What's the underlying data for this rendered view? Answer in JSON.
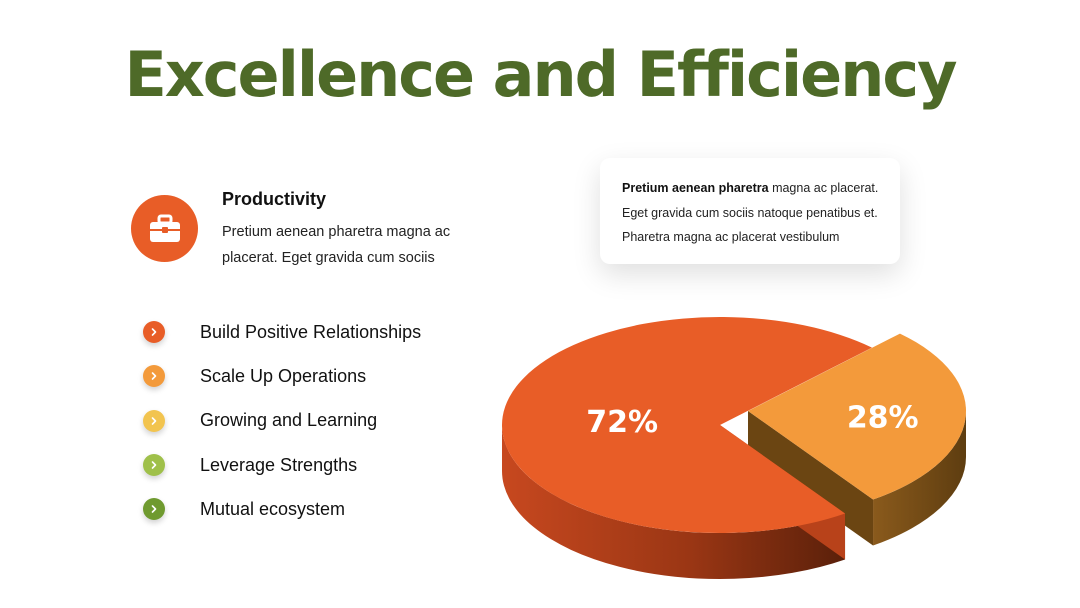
{
  "title": "Excellence and Efficiency",
  "feature": {
    "icon": "briefcase-icon",
    "title": "Productivity",
    "description": "Pretium aenean pharetra magna ac placerat. Eget gravida cum sociis"
  },
  "bullets": [
    {
      "label": "Build Positive Relationships",
      "color": "#e85d27"
    },
    {
      "label": "Scale Up Operations",
      "color": "#f39a3b"
    },
    {
      "label": "Growing and Learning",
      "color": "#f2c44f"
    },
    {
      "label": "Leverage Strengths",
      "color": "#9fc04a"
    },
    {
      "label": "Mutual ecosystem",
      "color": "#6f9a2f"
    }
  ],
  "card": {
    "bold": "Pretium aenean pharetra",
    "text": " magna ac placerat. Eget gravida cum sociis natoque penatibus et. Pharetra magna ac placerat vestibulum"
  },
  "chart_data": {
    "type": "pie",
    "style": "3d-exploded",
    "slices": [
      {
        "label": "72%",
        "value": 72,
        "color": "#e85d27"
      },
      {
        "label": "28%",
        "value": 28,
        "color": "#f39a3b"
      }
    ]
  }
}
